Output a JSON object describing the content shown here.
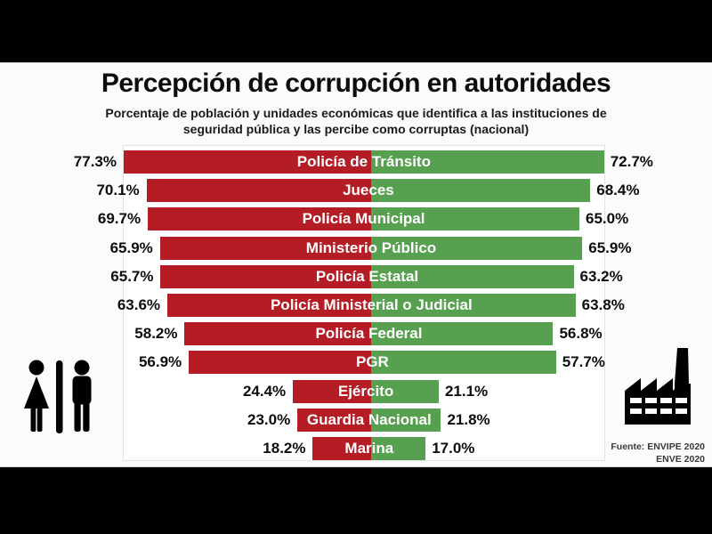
{
  "header": {
    "title": "Percepción de corrupción en autoridades",
    "subtitle": "Porcentaje de población y unidades económicas que identifica a las instituciones de seguridad pública y las percibe como corruptas (nacional)"
  },
  "chart_data": {
    "type": "bar",
    "variant": "diverging-horizontal",
    "unit": "%",
    "title": "Percepción de corrupción en autoridades",
    "categories": [
      "Policía de Tránsito",
      "Jueces",
      "Policía Municipal",
      "Ministerio Público",
      "Policía Estatal",
      "Policía Ministerial o Judicial",
      "Policía Federal",
      "PGR",
      "Ejército",
      "Guardia Nacional",
      "Marina"
    ],
    "series": [
      {
        "name": "izquierda-poblacion",
        "icon": "people-icon",
        "color": "#b51d26",
        "values": [
          77.3,
          70.1,
          69.7,
          65.9,
          65.7,
          63.6,
          58.2,
          56.9,
          24.4,
          23.0,
          18.2
        ]
      },
      {
        "name": "derecha-unidades-economicas",
        "icon": "factory-icon",
        "color": "#57a04f",
        "values": [
          72.7,
          68.4,
          65.0,
          65.9,
          63.2,
          63.8,
          56.8,
          57.7,
          21.1,
          21.8,
          17.0
        ]
      }
    ],
    "value_label_format": "0.0%",
    "axis_hidden": true,
    "grid": false,
    "legend": "none"
  },
  "footer": {
    "source_line1": "Fuente: ENVIPE 2020",
    "source_line2": "ENVE 2020"
  },
  "colors": {
    "bar_left": "#b51d26",
    "bar_right": "#57a04f",
    "letterbox": "#000000",
    "panel_background": "#ffffff",
    "text": "#0d0d0d",
    "icon": "#000000"
  }
}
